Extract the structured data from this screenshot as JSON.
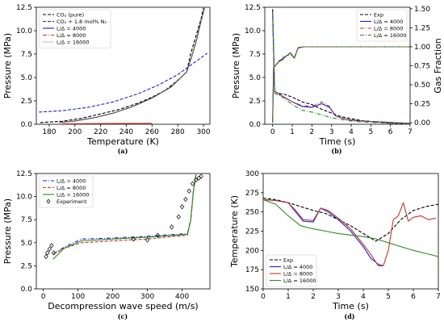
{
  "chart_data": [
    {
      "type": "line",
      "caption": "(a)",
      "xlabel": "Temperature (K)",
      "ylabel": "Pressure (MPa)",
      "xlim": [
        170,
        305
      ],
      "ylim": [
        0,
        12.5
      ],
      "xticks": [
        180,
        200,
        220,
        240,
        260,
        280,
        300
      ],
      "yticks": [
        0.0,
        2.5,
        5.0,
        7.5,
        10.0,
        12.5
      ],
      "legend_position": "top-left",
      "series": [
        {
          "name": "CO₂ (pure)",
          "style": "dashed",
          "color": "#000000",
          "x": [
            173,
            190,
            205,
            220,
            235,
            250,
            260,
            270,
            280,
            287,
            290,
            295,
            298,
            300
          ],
          "y": [
            0.18,
            0.32,
            0.63,
            1.1,
            1.6,
            2.3,
            2.9,
            3.6,
            4.7,
            5.6,
            7.5,
            9.8,
            11.2,
            12.4
          ]
        },
        {
          "name": "CO₂ + 1.8 mol% N₂",
          "style": "dashed",
          "color": "#1f1fd0",
          "x": [
            172,
            190,
            210,
            230,
            250,
            265,
            280,
            290,
            297,
            303
          ],
          "y": [
            1.3,
            1.45,
            1.8,
            2.4,
            3.3,
            4.2,
            5.3,
            6.3,
            7.0,
            7.6
          ]
        },
        {
          "name": "L/Δ = 4000",
          "style": "solid",
          "color": "#1f1fd0",
          "x": [
            188,
            200,
            215,
            230,
            245,
            260,
            275,
            287,
            291,
            295,
            298,
            301
          ],
          "y": [
            0.2,
            0.35,
            0.7,
            1.2,
            1.9,
            2.8,
            4.0,
            5.6,
            7.3,
            9.2,
            11.0,
            12.5
          ]
        },
        {
          "name": "L/Δ = 8000",
          "style": "dashdot",
          "color": "#c0392b",
          "x": [
            188,
            200,
            215,
            230,
            245,
            260,
            275,
            287,
            291,
            295,
            298,
            301
          ],
          "y": [
            0.2,
            0.35,
            0.7,
            1.2,
            1.9,
            2.8,
            4.0,
            5.6,
            7.3,
            9.2,
            11.0,
            12.5
          ]
        },
        {
          "name": "L/Δ = 16000",
          "style": "dotted",
          "color": "#2e8b20",
          "x": [
            188,
            200,
            215,
            230,
            245,
            260,
            275,
            287,
            291,
            295,
            298,
            301
          ],
          "y": [
            0.2,
            0.35,
            0.7,
            1.2,
            1.9,
            2.8,
            4.0,
            5.6,
            7.3,
            9.2,
            11.0,
            12.5
          ]
        },
        {
          "name": "",
          "style": "solid",
          "color": "#c0392b",
          "x": [
            190,
            220,
            260
          ],
          "y": [
            0.05,
            0.08,
            0.1
          ]
        }
      ]
    },
    {
      "type": "line",
      "caption": "(b)",
      "xlabel": "Time (s)",
      "ylabel": "Pressure (MPa)",
      "ylabel_right": "Gas Fraction",
      "xlim": [
        -0.4,
        7.0
      ],
      "ylim": [
        0,
        12.5
      ],
      "ylim_right": [
        -0.02,
        1.52
      ],
      "xticks": [
        0,
        1,
        2,
        3,
        4,
        5,
        6,
        7
      ],
      "yticks": [
        0.0,
        2.5,
        5.0,
        7.5,
        10.0,
        12.5
      ],
      "yticks_right": [
        0.0,
        0.25,
        0.5,
        0.75,
        1.0,
        1.25,
        1.5
      ],
      "legend_position": "top-right",
      "series": [
        {
          "name": "Exp",
          "style": "dashed",
          "color": "#000000",
          "x": [
            0,
            0.05,
            0.1,
            0.3,
            0.6,
            1.0,
            1.5,
            2.0,
            2.5,
            3.0,
            3.5,
            4.0,
            4.5,
            5.0,
            5.5,
            6.0,
            6.5,
            7.0
          ],
          "y": [
            12.3,
            8.0,
            3.5,
            3.3,
            3.2,
            2.9,
            2.4,
            2.1,
            1.6,
            1.2,
            0.8,
            0.6,
            0.4,
            0.3,
            0.2,
            0.1,
            0.05,
            0.0
          ]
        },
        {
          "name": "L/Δ = 4000",
          "style": "solid",
          "color": "#1f1fd0",
          "x": [
            0,
            0.1,
            0.5,
            1.0,
            1.5,
            2.0,
            2.5,
            2.9,
            3.2,
            3.6,
            4.0,
            4.5,
            5.0,
            5.5,
            6.0,
            6.5,
            7.0
          ],
          "y": [
            12.0,
            3.5,
            3.0,
            2.4,
            1.9,
            1.8,
            2.2,
            1.8,
            0.9,
            0.6,
            0.45,
            0.35,
            0.3,
            0.25,
            0.2,
            0.15,
            0.1
          ]
        },
        {
          "name": "L/Δ = 8000",
          "style": "dashdot",
          "color": "#c0392b",
          "x": [
            0,
            0.1,
            0.5,
            1.0,
            1.5,
            2.0,
            2.5,
            2.9,
            3.2,
            3.6,
            4.0,
            4.5,
            5.0,
            5.5,
            6.0,
            6.5,
            7.0
          ],
          "y": [
            12.0,
            3.5,
            3.0,
            2.4,
            2.0,
            1.9,
            2.4,
            1.9,
            0.9,
            0.6,
            0.45,
            0.35,
            0.3,
            0.25,
            0.2,
            0.15,
            0.1
          ]
        },
        {
          "name": "L/Δ = 16000",
          "style": "dashdot",
          "color": "#2e8b20",
          "x": [
            0,
            0.1,
            0.5,
            1.0,
            1.5,
            2.0,
            2.5,
            3.0,
            3.5,
            4.0,
            4.5,
            5.0,
            5.5,
            6.0,
            6.5,
            7.0
          ],
          "y": [
            12.0,
            3.3,
            2.9,
            2.1,
            1.5,
            1.3,
            1.0,
            0.7,
            0.5,
            0.35,
            0.25,
            0.2,
            0.15,
            0.1,
            0.05,
            0.02
          ]
        },
        {
          "name": "",
          "axis": "right",
          "style": "solid",
          "color": "#1f1fd0",
          "x": [
            0,
            0.05,
            0.3,
            0.6,
            0.9,
            1.1,
            1.3,
            1.6,
            2.0,
            3.0,
            4.0,
            5.0,
            6.0,
            7.0
          ],
          "y": [
            0.0,
            0.72,
            0.8,
            0.86,
            0.92,
            0.85,
            0.99,
            1.0,
            1.0,
            1.0,
            1.0,
            1.0,
            1.0,
            1.0
          ]
        },
        {
          "name": "",
          "axis": "right",
          "style": "dashed",
          "color": "#c0392b",
          "x": [
            0,
            0.05,
            0.3,
            0.6,
            0.9,
            1.1,
            1.3,
            1.6,
            2.0,
            3.0,
            4.0,
            5.0,
            6.0,
            7.0
          ],
          "y": [
            0.0,
            0.72,
            0.81,
            0.87,
            0.9,
            0.86,
            0.98,
            1.0,
            1.0,
            1.0,
            1.0,
            1.0,
            1.0,
            1.0
          ]
        },
        {
          "name": "",
          "axis": "right",
          "style": "dashdot",
          "color": "#2e8b20",
          "x": [
            0,
            0.05,
            0.3,
            0.6,
            0.9,
            1.1,
            1.3,
            1.6,
            2.0,
            3.0,
            4.0,
            5.0,
            6.0,
            7.0
          ],
          "y": [
            0.0,
            0.72,
            0.8,
            0.84,
            0.93,
            0.84,
            0.99,
            1.0,
            1.0,
            1.0,
            1.0,
            1.0,
            1.0,
            1.0
          ]
        }
      ]
    },
    {
      "type": "line",
      "caption": "(c)",
      "xlabel": "Decompression wave speed (m/s)",
      "ylabel": "Pressure (MPa)",
      "xlim": [
        -20,
        480
      ],
      "ylim": [
        0,
        12.5
      ],
      "xticks": [
        0,
        100,
        200,
        300,
        400
      ],
      "yticks": [
        0.0,
        2.5,
        5.0,
        7.5,
        10.0,
        12.5
      ],
      "legend_position": "top-left",
      "series": [
        {
          "name": "L/Δ = 4000",
          "style": "dashdot",
          "color": "#1f1fd0",
          "x": [
            30,
            60,
            110,
            200,
            300,
            380,
            415,
            425,
            432,
            440
          ],
          "y": [
            3.8,
            4.5,
            5.4,
            5.5,
            5.7,
            5.9,
            6.0,
            7.5,
            10.5,
            12.4
          ]
        },
        {
          "name": "L/Δ = 8000",
          "style": "dashed",
          "color": "#c0392b",
          "x": [
            30,
            60,
            110,
            200,
            300,
            380,
            415,
            425,
            432,
            440
          ],
          "y": [
            3.8,
            4.4,
            5.0,
            5.2,
            5.4,
            5.7,
            5.8,
            7.4,
            10.4,
            12.4
          ]
        },
        {
          "name": "L/Δ = 16000",
          "style": "solid",
          "color": "#2e8b20",
          "x": [
            28,
            60,
            110,
            200,
            300,
            380,
            415,
            425,
            432,
            440
          ],
          "y": [
            3.2,
            4.4,
            5.2,
            5.4,
            5.6,
            5.8,
            5.9,
            7.4,
            10.5,
            12.4
          ]
        },
        {
          "name": "Experiment",
          "style": "markers",
          "color": "#000000",
          "x": [
            8,
            12,
            18,
            24,
            30,
            260,
            300,
            330,
            370,
            390,
            400,
            410,
            420,
            430,
            440,
            448,
            455
          ],
          "y": [
            3.5,
            3.9,
            4.3,
            4.7,
            3.9,
            5.4,
            5.3,
            5.8,
            6.7,
            7.8,
            8.9,
            9.7,
            10.6,
            11.4,
            11.8,
            12.0,
            12.2
          ]
        }
      ]
    },
    {
      "type": "line",
      "caption": "(d)",
      "xlabel": "Time (s)",
      "ylabel": "Temperature (K)",
      "xlim": [
        0,
        7
      ],
      "ylim": [
        150,
        300
      ],
      "xticks": [
        0,
        1,
        2,
        3,
        4,
        5,
        6,
        7
      ],
      "yticks": [
        150,
        175,
        200,
        225,
        250,
        275,
        300
      ],
      "legend_position": "bottom-left",
      "series": [
        {
          "name": "Exp",
          "style": "dashed",
          "color": "#000000",
          "x": [
            0,
            0.5,
            1.0,
            1.5,
            2.0,
            2.5,
            3.0,
            3.5,
            4.0,
            4.5,
            5.0,
            5.5,
            6.0,
            6.5,
            7.0
          ],
          "y": [
            268,
            266,
            262,
            257,
            252,
            248,
            240,
            232,
            222,
            212,
            222,
            240,
            252,
            257,
            260
          ]
        },
        {
          "name": "L/Δ = 4000",
          "style": "solid",
          "color": "#1f1fd0",
          "x": [
            0,
            0.5,
            1.0,
            1.3,
            1.6,
            2.0,
            2.3,
            2.6,
            3.0,
            3.5,
            4.0,
            4.3,
            4.6,
            4.8
          ],
          "y": [
            266,
            265,
            262,
            250,
            238,
            237,
            255,
            250,
            240,
            225,
            205,
            190,
            182,
            180
          ]
        },
        {
          "name": "L/Δ = 8000",
          "style": "solid",
          "color": "#c0392b",
          "x": [
            0,
            0.5,
            1.0,
            1.3,
            1.6,
            2.0,
            2.3,
            2.6,
            3.0,
            3.5,
            4.0,
            4.3,
            4.6,
            4.8,
            5.0,
            5.2,
            5.4,
            5.6,
            5.8,
            6.0,
            6.3,
            6.6,
            6.9
          ],
          "y": [
            266,
            265,
            262,
            252,
            240,
            239,
            255,
            252,
            242,
            228,
            208,
            195,
            180,
            180,
            200,
            240,
            245,
            262,
            238,
            243,
            245,
            240,
            242
          ]
        },
        {
          "name": "L/Δ = 16000",
          "style": "solid",
          "color": "#2e8b20",
          "x": [
            0,
            0.5,
            1.0,
            1.5,
            2.0,
            2.5,
            3.0,
            3.5,
            4.0,
            4.5,
            5.0,
            5.5,
            6.0,
            6.5,
            7.0
          ],
          "y": [
            266,
            260,
            245,
            232,
            228,
            225,
            222,
            220,
            218,
            215,
            210,
            205,
            200,
            196,
            192
          ]
        }
      ]
    }
  ]
}
